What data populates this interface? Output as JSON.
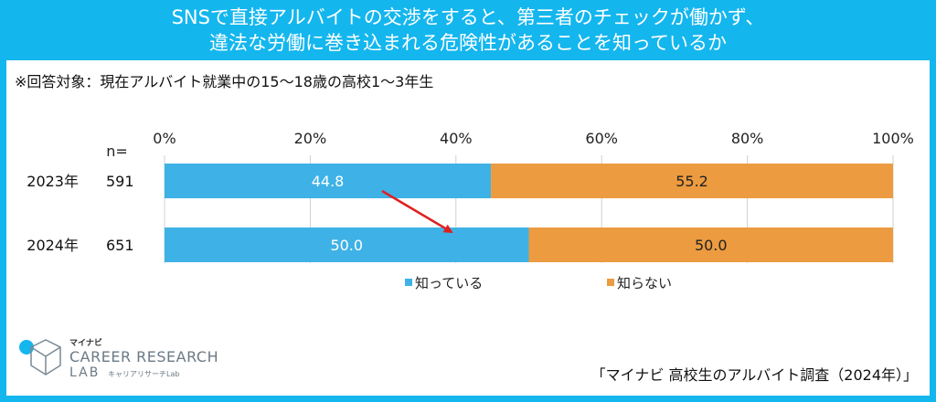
{
  "header": {
    "line1": "SNSで直接アルバイトの交渉をすると、第三者のチェックが働かず、",
    "line2": "違法な労働に巻き込まれる危険性があることを知っているか"
  },
  "note": "※回答対象：現在アルバイト就業中の15～18歳の高校1～3年生",
  "n_label": "n=",
  "logo": {
    "jp": "マイナビ",
    "main": "CAREER RESEARCH",
    "lab": "LAB",
    "kana": "キャリアリサーチLab"
  },
  "source": "「マイナビ 高校生のアルバイト調査（2024年）」",
  "colors": {
    "header": "#14b6ee",
    "know": "#3eb2e6",
    "dont_know": "#ec9b40",
    "arrow": "#e02020"
  },
  "chart_data": {
    "type": "bar",
    "orientation": "horizontal",
    "stacked": true,
    "percent_stacked": true,
    "categories": [
      "2023年",
      "2024年"
    ],
    "n": [
      "591",
      "651"
    ],
    "series": [
      {
        "name": "知っている",
        "values": [
          44.8,
          50.0
        ],
        "labels": [
          "44.8",
          "50.0"
        ]
      },
      {
        "name": "知らない",
        "values": [
          55.2,
          50.0
        ],
        "labels": [
          "55.2",
          "50.0"
        ]
      }
    ],
    "xlim": [
      0,
      100
    ],
    "xticks": [
      "0%",
      "20%",
      "40%",
      "60%",
      "80%",
      "100%"
    ],
    "grid": true,
    "legend": "bottom",
    "annotation": "arrow-from-2023-to-2024"
  }
}
